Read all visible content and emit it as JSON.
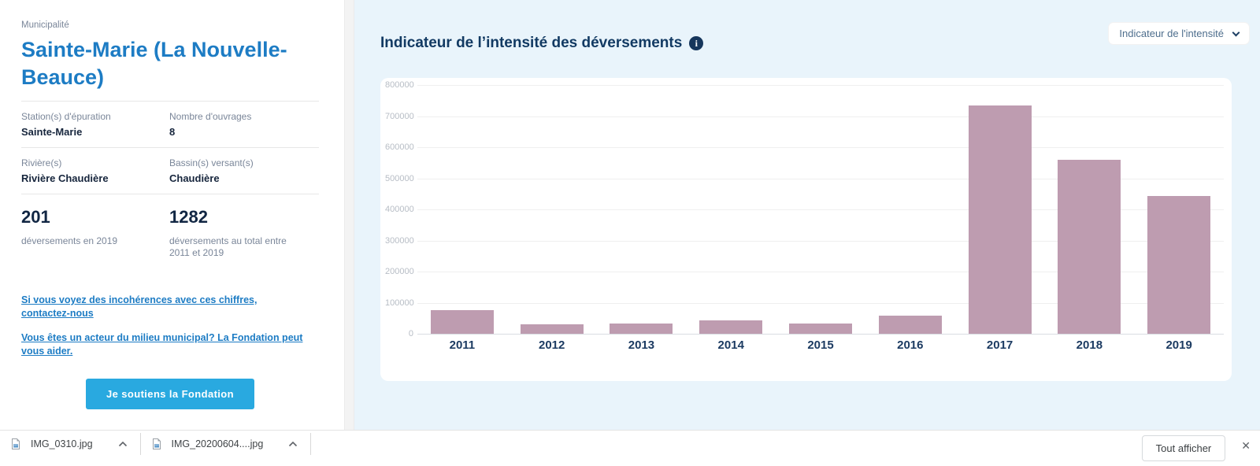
{
  "left_panel": {
    "section_label": "Municipalité",
    "title": "Sainte-Marie (La Nouvelle-Beauce)",
    "fields": [
      {
        "label": "Station(s) d'épuration",
        "value": "Sainte-Marie"
      },
      {
        "label": "Nombre d'ouvrages",
        "value": "8"
      },
      {
        "label": "Rivière(s)",
        "value": "Rivière Chaudière"
      },
      {
        "label": "Bassin(s) versant(s)",
        "value": "Chaudière"
      }
    ],
    "stats": [
      {
        "value": "201",
        "caption": "déversements en 2019"
      },
      {
        "value": "1282",
        "caption": "déversements au total entre 2011 et 2019"
      }
    ],
    "links": [
      "Si vous voyez des incohérences avec ces chiffres, contactez-nous",
      "Vous êtes un acteur du milieu municipal? La Fondation peut vous aider."
    ],
    "cta_label": "Je soutiens la Fondation"
  },
  "chart_header": {
    "title": "Indicateur de l’intensité des déversements",
    "info_icon": "i",
    "dropdown_value": "Indicateur de l'intensité"
  },
  "chart_data": {
    "type": "bar",
    "title": "Indicateur de l’intensité des déversements",
    "categories": [
      "2011",
      "2012",
      "2013",
      "2014",
      "2015",
      "2016",
      "2017",
      "2018",
      "2019"
    ],
    "values": [
      77000,
      31000,
      32000,
      44000,
      34000,
      59000,
      735000,
      560000,
      443000
    ],
    "xlabel": "",
    "ylabel": "",
    "ylim": [
      0,
      800000
    ],
    "ytick_step": 100000,
    "grid": true,
    "legend": false,
    "bar_color": "#be9cb0"
  },
  "downloads": {
    "items": [
      {
        "filename": "IMG_0310.jpg"
      },
      {
        "filename": "IMG_20200604....jpg"
      }
    ],
    "show_all_label": "Tout afficher",
    "close_glyph": "✕"
  },
  "colors": {
    "accent_blue": "#29a9e0",
    "title_blue": "#1d7cc4",
    "dark_navy": "#123a63",
    "bar_mauve": "#be9cb0",
    "page_bg": "#e9f4fb"
  }
}
